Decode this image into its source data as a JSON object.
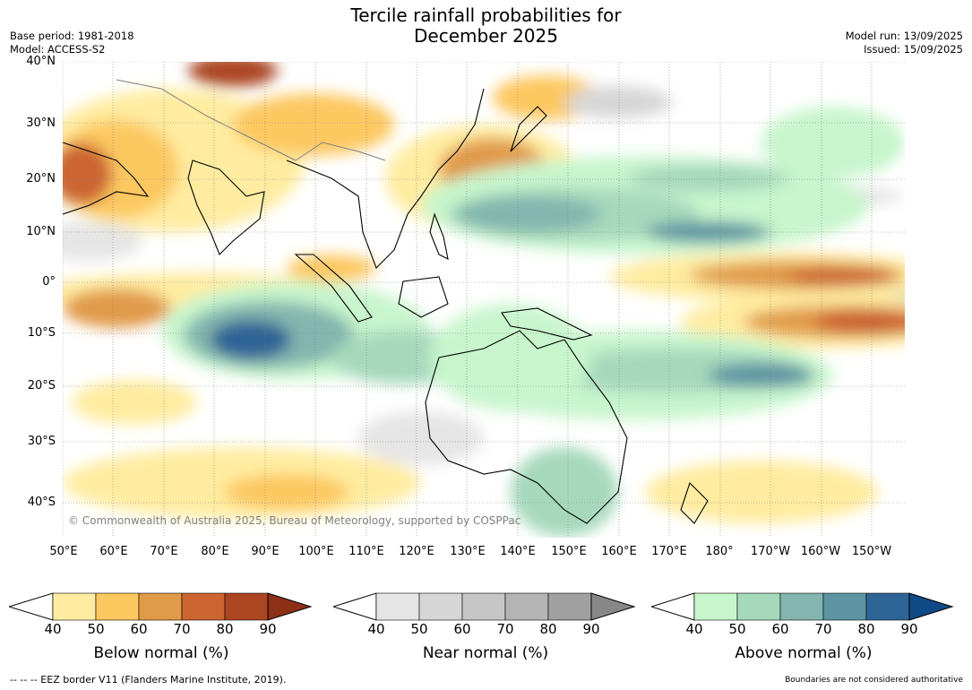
{
  "title": {
    "line1": "Tercile rainfall probabilities for",
    "line2": "December 2025"
  },
  "meta_left": {
    "base_period": "Base period: 1981-2018",
    "model": "Model: ACCESS-S2"
  },
  "meta_right": {
    "model_run": "Model run: 13/09/2025",
    "issued": "Issued: 15/09/2025"
  },
  "map": {
    "lat_labels": [
      "40°N",
      "30°N",
      "20°N",
      "10°N",
      "0°",
      "10°S",
      "20°S",
      "30°S",
      "40°S"
    ],
    "lon_labels": [
      "50°E",
      "60°E",
      "70°E",
      "80°E",
      "90°E",
      "100°E",
      "110°E",
      "120°E",
      "130°E",
      "140°E",
      "150°E",
      "160°E",
      "170°E",
      "180°",
      "170°W",
      "160°W",
      "150°W"
    ],
    "copyright": "© Commonwealth of Australia 2025, Bureau of Meteorology, supported by COSPPac",
    "colors": {
      "coast": "#000000",
      "borders": "#808080",
      "grid": "#7f7f7f"
    }
  },
  "colorbars": [
    {
      "id": "below",
      "label": "Below normal (%)",
      "ticks": [
        "40",
        "50",
        "60",
        "70",
        "80",
        "90"
      ],
      "colors": [
        "#ffeca0",
        "#fcc860",
        "#e09a48",
        "#cc6530",
        "#ac4522",
        "#8c3016"
      ]
    },
    {
      "id": "near",
      "label": "Near normal (%)",
      "ticks": [
        "40",
        "50",
        "60",
        "70",
        "80",
        "90"
      ],
      "colors": [
        "#e5e5e5",
        "#d6d6d6",
        "#c6c6c6",
        "#b4b4b4",
        "#a0a0a0",
        "#878787"
      ]
    },
    {
      "id": "above",
      "label": "Above normal (%)",
      "ticks": [
        "40",
        "50",
        "60",
        "70",
        "80",
        "90"
      ],
      "colors": [
        "#c8f5cc",
        "#a6d8bc",
        "#82b6ae",
        "#5c94a2",
        "#2e6496",
        "#0f4a86"
      ]
    }
  ],
  "footer": {
    "left": "--  --  -- EEZ border V11 (Flanders Marine Institute, 2019).",
    "right": "Boundaries are not considered authoritative"
  }
}
